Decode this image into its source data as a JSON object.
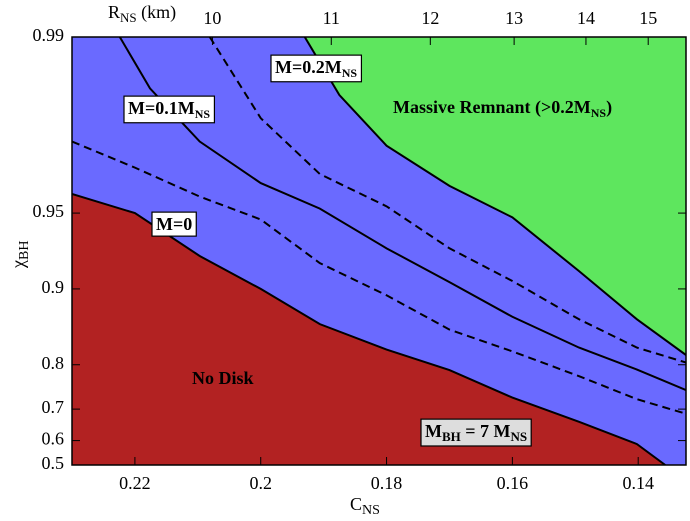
{
  "chart_data": {
    "type": "region",
    "x_label": [
      "C",
      "NS"
    ],
    "x2_label": [
      "R",
      "NS",
      " (km)"
    ],
    "y_label": [
      "χ",
      "BH"
    ],
    "xlim": [
      0.23,
      0.1324
    ],
    "xticks": [
      0.22,
      0.2,
      0.18,
      0.16,
      0.14
    ],
    "x2lim": [
      9.03,
      15.68
    ],
    "x2scale": "reciprocal",
    "x2ticks": [
      10,
      11,
      12,
      13,
      14,
      15
    ],
    "ylim": [
      0.5,
      0.99
    ],
    "yscale": "log-one-minus",
    "yticks": [
      0.5,
      0.6,
      0.7,
      0.8,
      0.9,
      0.95,
      0.99
    ],
    "region_colors": [
      "#b22222",
      "#6a6aff",
      "#5ee65e"
    ],
    "series": [
      {
        "color": "#000000",
        "dash": false,
        "x": [
          0.23,
          0.22,
          0.2097,
          0.2,
          0.1906,
          0.18,
          0.17,
          0.16,
          0.1494,
          0.1402,
          0.1357
        ],
        "values": [
          0.958,
          0.95,
          0.926,
          0.9,
          0.862,
          0.826,
          0.79,
          0.73,
          0.663,
          0.587,
          0.5
        ]
      },
      {
        "color": "#000000",
        "dash": true,
        "x": [
          0.23,
          0.22,
          0.2097,
          0.2,
          0.1906,
          0.18,
          0.17,
          0.16,
          0.1494,
          0.1402,
          0.1324
        ],
        "values": [
          0.974,
          0.967,
          0.957,
          0.947,
          0.921,
          0.894,
          0.855,
          0.823,
          0.778,
          0.726,
          0.687
        ]
      },
      {
        "color": "#000000",
        "dash": false,
        "x": [
          0.2224,
          0.2176,
          0.2097,
          0.2,
          0.1906,
          0.18,
          0.17,
          0.16,
          0.1494,
          0.1402,
          0.1324
        ],
        "values": [
          0.99,
          0.984,
          0.974,
          0.962,
          0.952,
          0.931,
          0.906,
          0.871,
          0.829,
          0.791,
          0.748
        ]
      },
      {
        "color": "#000000",
        "dash": true,
        "x": [
          0.2081,
          0.2,
          0.1906,
          0.18,
          0.17,
          0.16,
          0.1494,
          0.1402,
          0.1324
        ],
        "values": [
          0.99,
          0.979,
          0.965,
          0.953,
          0.931,
          0.907,
          0.868,
          0.829,
          0.804
        ]
      },
      {
        "color": "#000000",
        "dash": false,
        "x": [
          0.193,
          0.1875,
          0.18,
          0.17,
          0.16,
          0.1494,
          0.1402,
          0.1324
        ],
        "values": [
          0.99,
          0.983,
          0.973,
          0.961,
          0.948,
          0.915,
          0.868,
          0.817
        ]
      }
    ],
    "annotations": [
      {
        "parts": [
          "M=0.2M",
          "NS"
        ],
        "box": "#ffffff"
      },
      {
        "parts": [
          "M=0.1M",
          "NS"
        ],
        "box": "#ffffff"
      },
      {
        "parts": [
          "M=0"
        ],
        "box": "#ffffff"
      },
      {
        "parts": [
          "Massive Remnant (>0.2M",
          "NS",
          ")"
        ],
        "color": "#000000"
      },
      {
        "parts": [
          "No Disk"
        ],
        "color": "#f2d6d6"
      },
      {
        "parts": [
          "M",
          "BH",
          " = 7 M",
          "NS"
        ],
        "box": "#dddddd"
      }
    ]
  }
}
